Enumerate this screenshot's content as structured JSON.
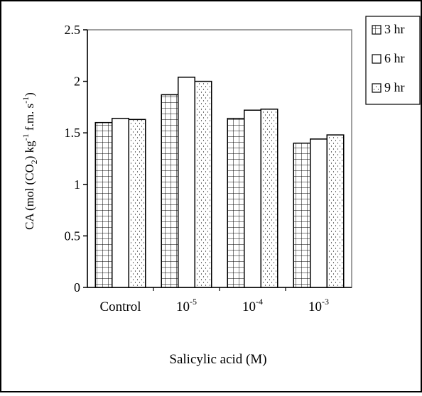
{
  "chart_data": {
    "type": "bar",
    "categories": [
      {
        "base": "Control",
        "sup": ""
      },
      {
        "base": "10",
        "sup": "-5"
      },
      {
        "base": "10",
        "sup": "-4"
      },
      {
        "base": "10",
        "sup": "-3"
      }
    ],
    "series": [
      {
        "name": "3 hr",
        "pattern": "grid",
        "values": [
          1.6,
          1.87,
          1.64,
          1.4
        ]
      },
      {
        "name": "6 hr",
        "pattern": "plain",
        "values": [
          1.64,
          2.04,
          1.72,
          1.44
        ]
      },
      {
        "name": "9 hr",
        "pattern": "dots",
        "values": [
          1.63,
          2.0,
          1.73,
          1.48
        ]
      }
    ],
    "xlabel": "Salicylic acid (M)",
    "ylabel_parts": [
      {
        "text": "CA (mol (CO",
        "shift": null
      },
      {
        "text": "2",
        "shift": "sub"
      },
      {
        "text": ") kg",
        "shift": null
      },
      {
        "text": "-1",
        "shift": "super"
      },
      {
        "text": " f.m. s",
        "shift": null
      },
      {
        "text": "-1",
        "shift": "super"
      },
      {
        "text": ")",
        "shift": null
      }
    ],
    "ylim": [
      0,
      2.5
    ],
    "yticks": [
      {
        "value": 0,
        "label": "0"
      },
      {
        "value": 0.5,
        "label": "0.5"
      },
      {
        "value": 1,
        "label": "1"
      },
      {
        "value": 1.5,
        "label": "1.5"
      },
      {
        "value": 2,
        "label": "2"
      },
      {
        "value": 2.5,
        "label": "2.5"
      }
    ],
    "legend_position": "top-right",
    "grid": false
  }
}
